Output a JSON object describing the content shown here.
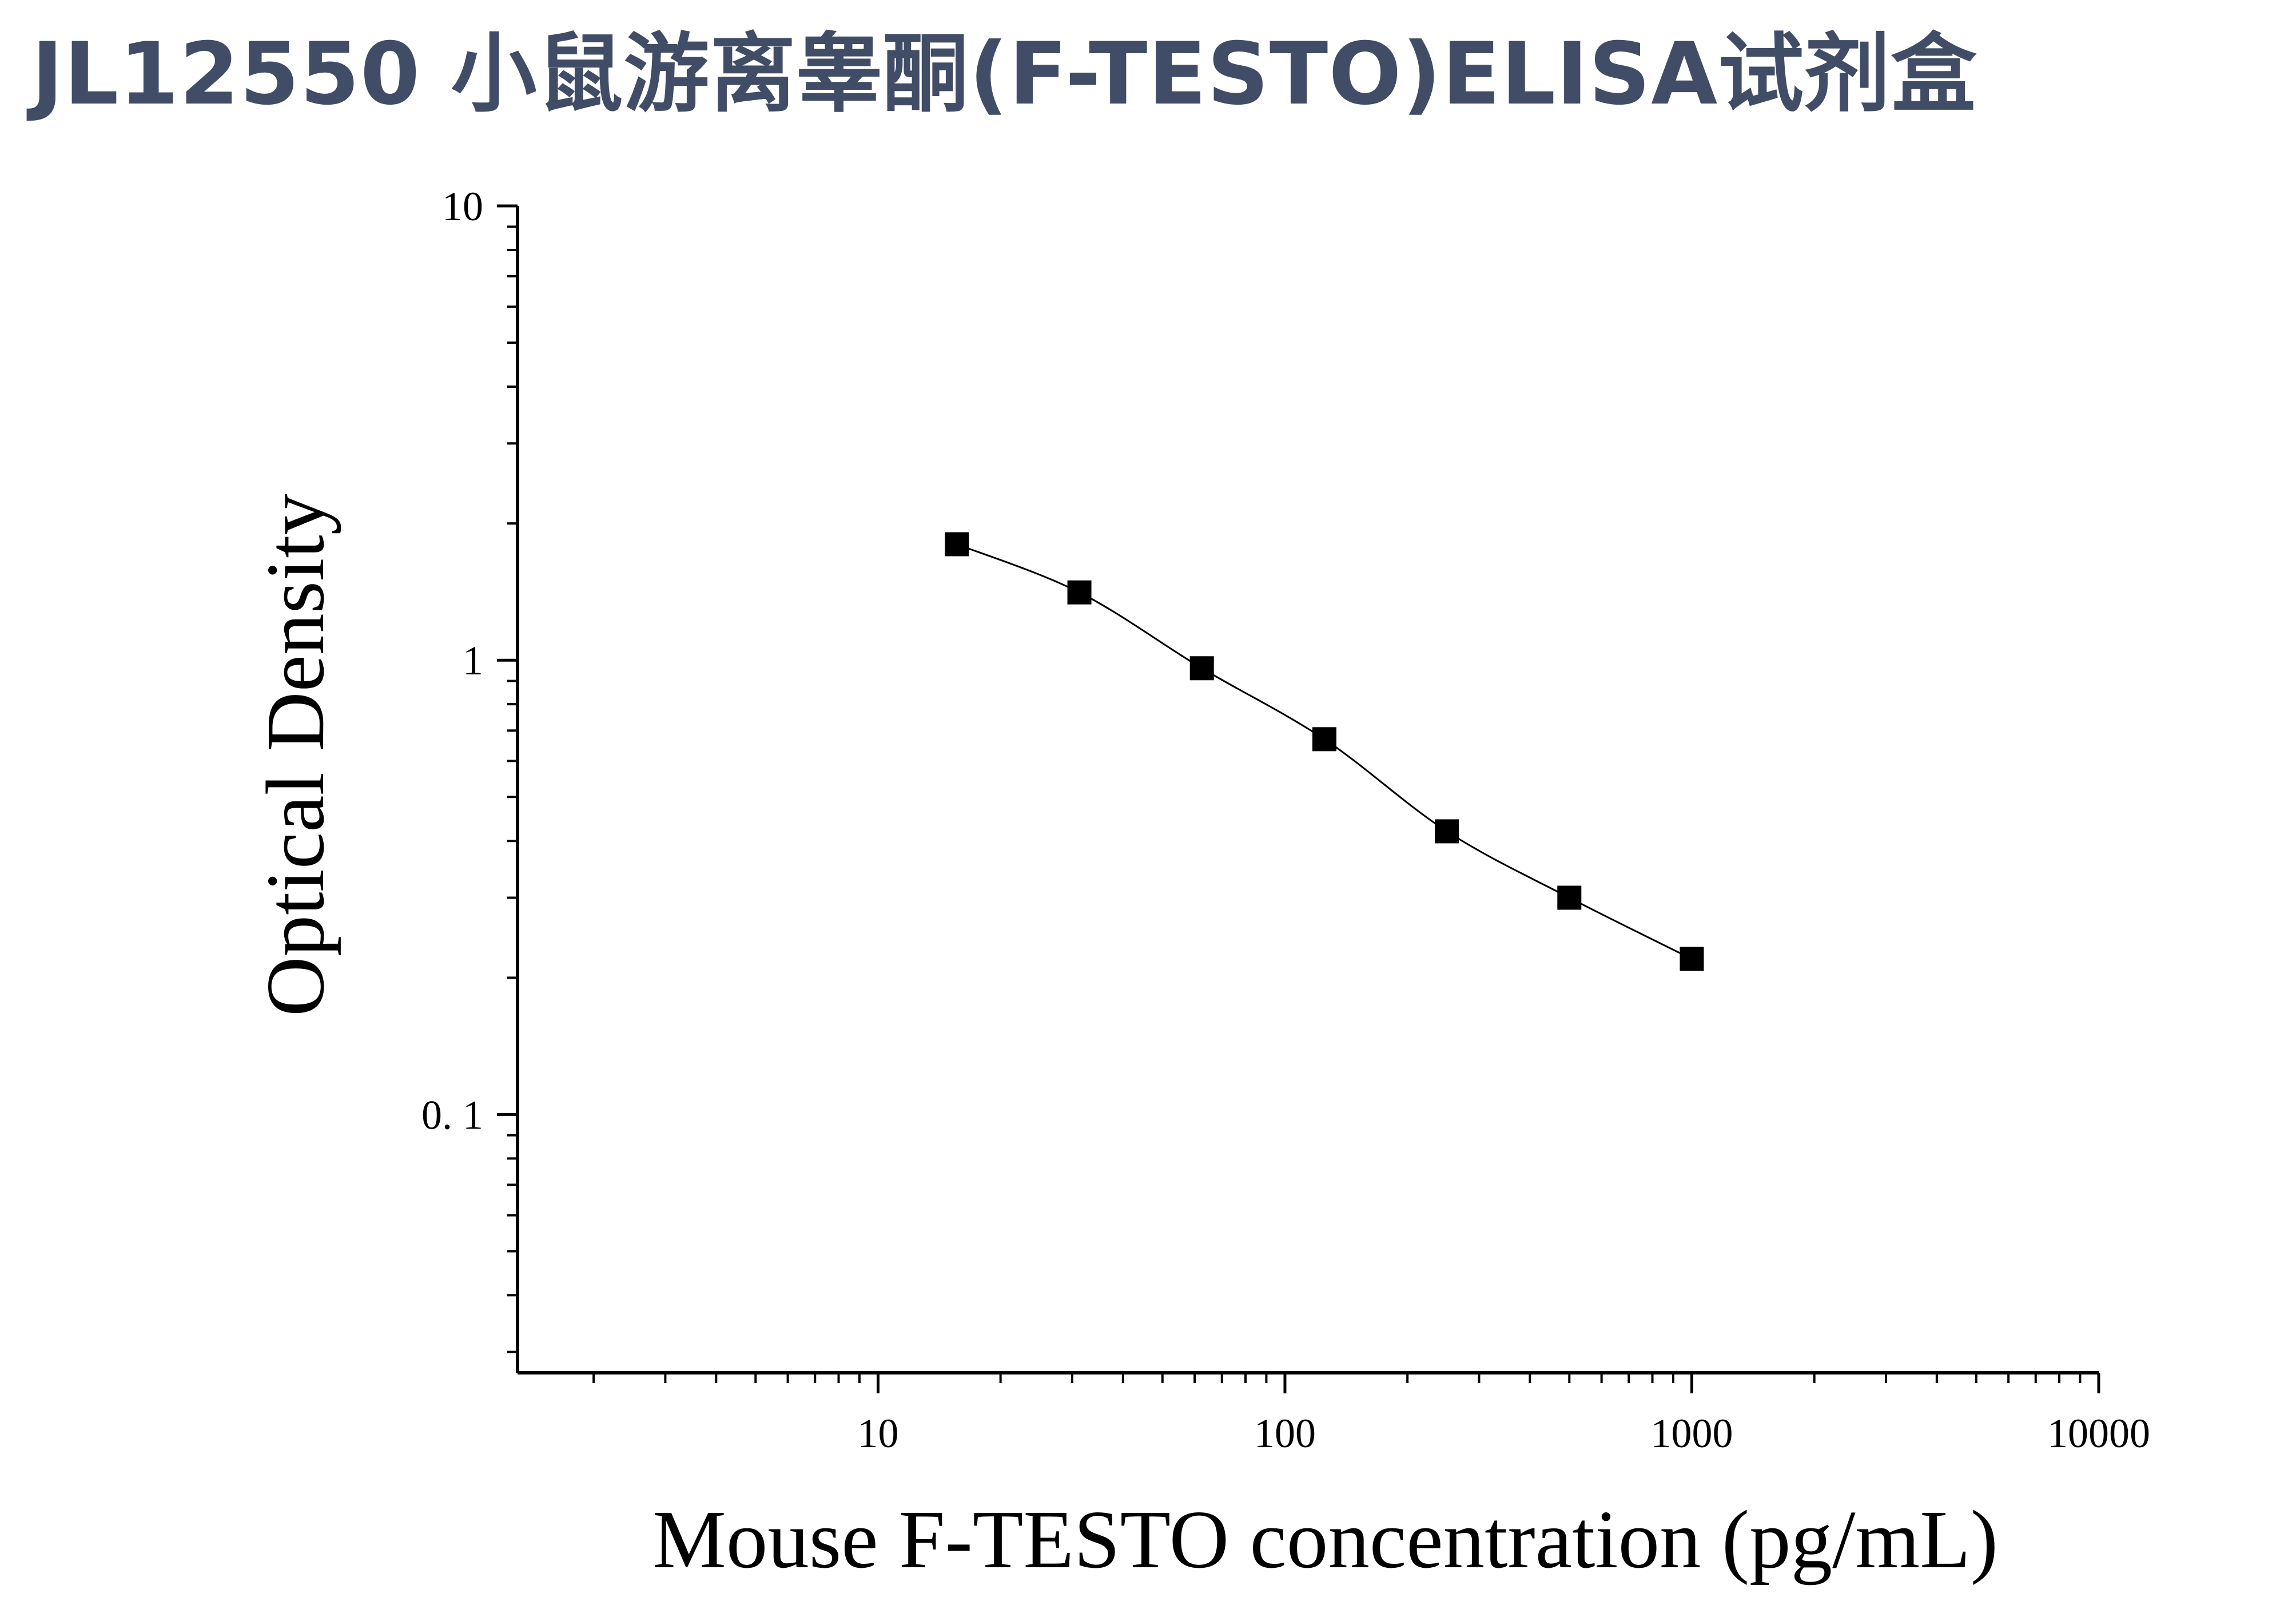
{
  "title": "JL12550 小鼠游离睾酮(F-TESTO)ELISA试剂盒",
  "colors": {
    "title": "#414d66",
    "axis": "#000000",
    "marker": "#000000",
    "curve": "#000000"
  },
  "chart_data": {
    "type": "scatter",
    "title": "",
    "xlabel": "Mouse F-TESTO concentration (pg/mL)",
    "ylabel": "Optical Density",
    "x_scale": "log",
    "y_scale": "log",
    "xlim": [
      1.3,
      10000
    ],
    "ylim": [
      0.027,
      10
    ],
    "grid": false,
    "x_ticks": [
      {
        "value": 10,
        "label": "10"
      },
      {
        "value": 100,
        "label": "100"
      },
      {
        "value": 1000,
        "label": "1000"
      },
      {
        "value": 10000,
        "label": "10000"
      }
    ],
    "y_ticks": [
      {
        "value": 0.1,
        "label": "0. 1"
      },
      {
        "value": 1,
        "label": "1"
      },
      {
        "value": 10,
        "label": "10"
      }
    ],
    "series": [
      {
        "marker": "square",
        "fit_curve": true,
        "x": [
          15.625,
          31.25,
          62.5,
          125,
          250,
          500,
          1000
        ],
        "y": [
          1.8,
          1.41,
          0.96,
          0.67,
          0.42,
          0.3,
          0.22
        ]
      }
    ]
  }
}
